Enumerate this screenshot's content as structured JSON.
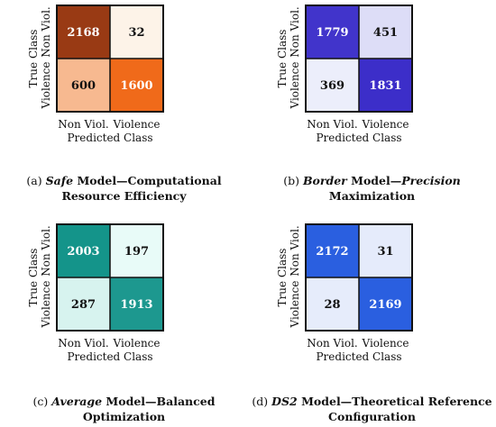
{
  "chart_data": [
    {
      "type": "heatmap",
      "x_categories": [
        "Non Viol.",
        "Violence"
      ],
      "y_categories": [
        "Non Viol.",
        "Violence"
      ],
      "values": [
        [
          2168,
          32
        ],
        [
          600,
          1600
        ]
      ],
      "xlabel": "Predicted Class",
      "ylabel": "True Class",
      "colors": {
        "low": "#fdf3e8",
        "high": "#e0550f",
        "mid": "#f06a1a",
        "dark": "#993a14"
      },
      "caption": {
        "tag": "(a)",
        "italic": "Safe",
        "rest": " Model—Computational Resource Efficiency"
      }
    },
    {
      "type": "heatmap",
      "x_categories": [
        "Non Viol.",
        "Violence"
      ],
      "y_categories": [
        "Non Viol.",
        "Violence"
      ],
      "values": [
        [
          1779,
          451
        ],
        [
          369,
          1831
        ]
      ],
      "xlabel": "Predicted Class",
      "ylabel": "True Class",
      "colors": {
        "low": "#eceefb",
        "high": "#3c2ec9"
      },
      "caption": {
        "tag": "(b)",
        "italic": "Border",
        "rest": " Model—",
        "italic2": "Precision",
        "rest2": " Maximization"
      }
    },
    {
      "type": "heatmap",
      "x_categories": [
        "Non Viol.",
        "Violence"
      ],
      "y_categories": [
        "Non Viol.",
        "Violence"
      ],
      "values": [
        [
          2003,
          197
        ],
        [
          287,
          1913
        ]
      ],
      "xlabel": "Predicted Class",
      "ylabel": "True Class",
      "colors": {
        "low": "#e8fbf8",
        "high": "#14948a"
      },
      "caption": {
        "tag": "(c)",
        "italic": "Average",
        "rest": " Model—Balanced Optimization"
      }
    },
    {
      "type": "heatmap",
      "x_categories": [
        "Non Viol.",
        "Violence"
      ],
      "y_categories": [
        "Non Viol.",
        "Violence"
      ],
      "values": [
        [
          2172,
          31
        ],
        [
          28,
          2169
        ]
      ],
      "xlabel": "Predicted Class",
      "ylabel": "True Class",
      "colors": {
        "low": "#e6ecfb",
        "high": "#2a5fe0"
      },
      "caption": {
        "tag": "(d)",
        "italic": "DS2",
        "rest": " Model—Theoretical Reference Configuration"
      }
    }
  ]
}
